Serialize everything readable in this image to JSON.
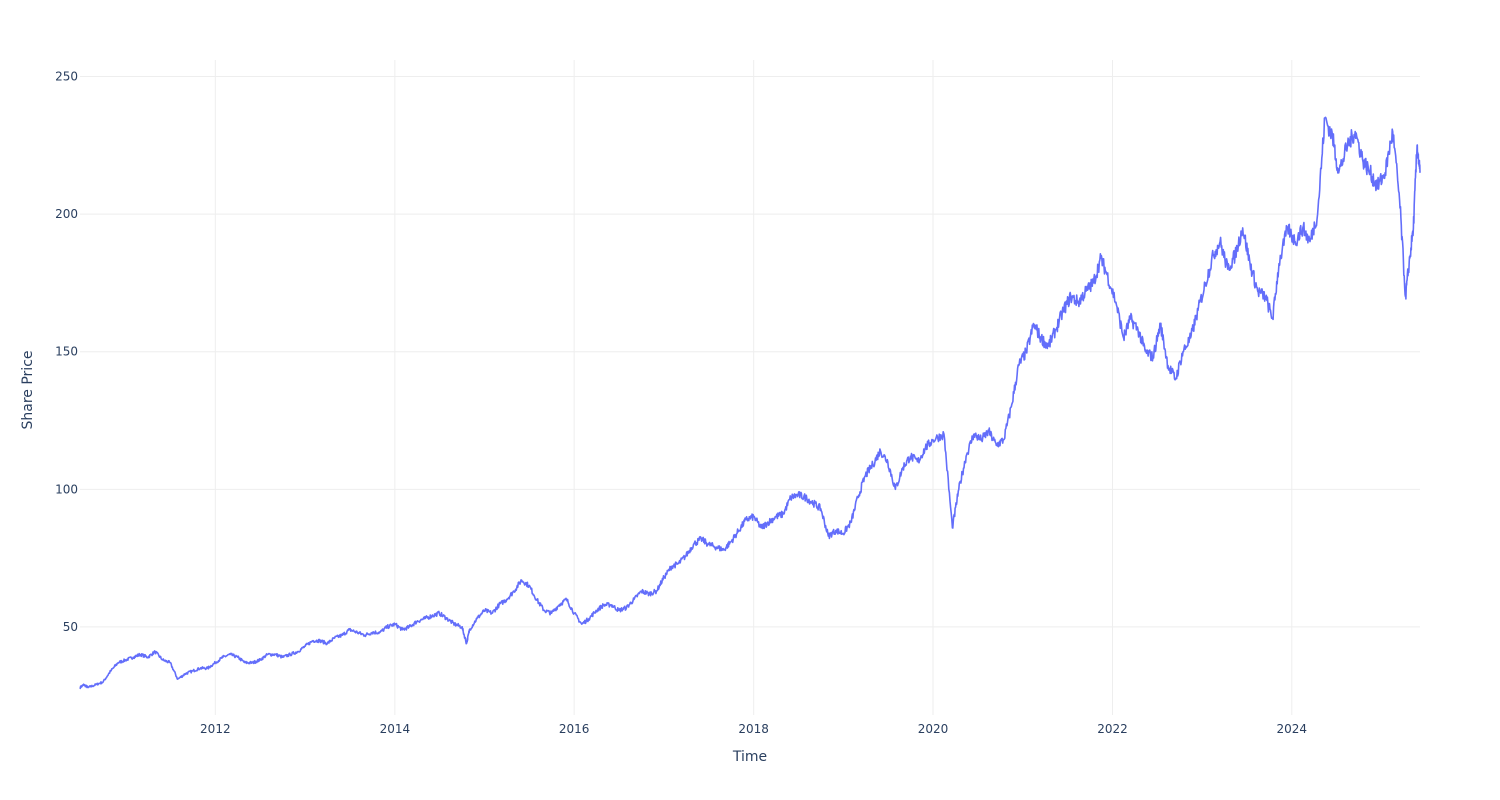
{
  "chart_data": {
    "type": "line",
    "title": "",
    "xlabel": "Time",
    "ylabel": "Share Price",
    "grid": true,
    "legend": "none",
    "colors": {
      "line": "#636efa",
      "grid": "#eeeeee",
      "text": "#2a3f5f"
    },
    "xlim": [
      "2010-06-29",
      "2025-06-06"
    ],
    "ylim": [
      18,
      256
    ],
    "x_ticks": [
      "2012",
      "2014",
      "2016",
      "2018",
      "2020",
      "2022",
      "2024"
    ],
    "y_ticks": [
      "50",
      "100",
      "150",
      "200",
      "250"
    ],
    "series": [
      {
        "x": [
          "2010-06-29",
          "2010-07-15",
          "2010-08-01",
          "2010-09-01",
          "2010-10-01",
          "2010-11-01",
          "2010-12-01",
          "2011-01-01",
          "2011-02-01",
          "2011-03-01",
          "2011-04-01",
          "2011-05-01",
          "2011-06-01",
          "2011-07-01",
          "2011-08-01",
          "2011-09-01",
          "2011-10-01",
          "2011-11-01",
          "2011-12-01",
          "2012-01-01",
          "2012-02-01",
          "2012-03-01",
          "2012-04-01",
          "2012-05-01",
          "2012-06-01",
          "2012-07-01",
          "2012-08-01",
          "2012-09-01",
          "2012-10-01",
          "2012-11-01",
          "2012-12-01",
          "2013-01-01",
          "2013-02-01",
          "2013-03-01",
          "2013-04-01",
          "2013-05-01",
          "2013-06-01",
          "2013-07-01",
          "2013-08-01",
          "2013-09-01",
          "2013-10-01",
          "2013-11-01",
          "2013-12-01",
          "2014-01-01",
          "2014-02-01",
          "2014-03-01",
          "2014-04-01",
          "2014-05-01",
          "2014-06-01",
          "2014-07-01",
          "2014-08-01",
          "2014-09-01",
          "2014-10-01",
          "2014-10-20",
          "2014-11-01",
          "2014-12-01",
          "2015-01-01",
          "2015-02-01",
          "2015-03-01",
          "2015-04-01",
          "2015-05-01",
          "2015-06-01",
          "2015-07-01",
          "2015-08-01",
          "2015-09-01",
          "2015-10-01",
          "2015-11-01",
          "2015-12-01",
          "2016-01-01",
          "2016-02-01",
          "2016-03-01",
          "2016-04-01",
          "2016-05-01",
          "2016-06-01",
          "2016-07-01",
          "2016-08-01",
          "2016-09-01",
          "2016-10-01",
          "2016-11-01",
          "2016-12-01",
          "2017-01-01",
          "2017-02-01",
          "2017-03-01",
          "2017-04-01",
          "2017-05-01",
          "2017-06-01",
          "2017-07-01",
          "2017-08-01",
          "2017-09-01",
          "2017-10-01",
          "2017-11-01",
          "2017-12-01",
          "2018-01-01",
          "2018-02-01",
          "2018-03-01",
          "2018-04-01",
          "2018-05-01",
          "2018-06-01",
          "2018-07-01",
          "2018-08-01",
          "2018-09-01",
          "2018-10-01",
          "2018-11-01",
          "2018-12-01",
          "2019-01-01",
          "2019-02-01",
          "2019-03-01",
          "2019-04-01",
          "2019-05-01",
          "2019-06-01",
          "2019-07-01",
          "2019-08-01",
          "2019-09-01",
          "2019-10-01",
          "2019-11-01",
          "2019-12-01",
          "2020-01-01",
          "2020-02-15",
          "2020-03-20",
          "2020-04-15",
          "2020-05-15",
          "2020-06-15",
          "2020-07-15",
          "2020-08-15",
          "2020-09-15",
          "2020-10-15",
          "2020-11-15",
          "2020-12-15",
          "2021-01-15",
          "2021-02-15",
          "2021-03-15",
          "2021-04-15",
          "2021-05-15",
          "2021-06-15",
          "2021-07-15",
          "2021-08-15",
          "2021-09-15",
          "2021-10-15",
          "2021-11-15",
          "2021-12-10",
          "2022-01-15",
          "2022-02-15",
          "2022-03-15",
          "2022-04-15",
          "2022-05-15",
          "2022-06-15",
          "2022-07-15",
          "2022-08-15",
          "2022-09-15",
          "2022-10-15",
          "2022-11-15",
          "2022-12-15",
          "2023-01-15",
          "2023-02-15",
          "2023-03-15",
          "2023-04-15",
          "2023-05-15",
          "2023-06-15",
          "2023-07-15",
          "2023-08-15",
          "2023-09-15",
          "2023-10-15",
          "2023-11-10",
          "2023-12-15",
          "2024-01-15",
          "2024-02-15",
          "2024-03-15",
          "2024-04-15",
          "2024-05-15",
          "2024-06-15",
          "2024-07-10",
          "2024-08-15",
          "2024-09-15",
          "2024-10-15",
          "2024-11-15",
          "2024-12-15",
          "2025-01-15",
          "2025-02-15",
          "2025-03-15",
          "2025-04-08",
          "2025-04-20",
          "2025-05-10",
          "2025-05-25",
          "2025-06-06"
        ],
        "y": [
          28,
          29,
          28,
          29,
          30,
          34,
          37,
          38,
          39,
          40,
          39,
          41,
          38,
          37,
          31,
          33,
          34,
          35,
          35,
          37,
          39,
          40,
          39,
          37,
          37,
          38,
          40,
          40,
          39,
          40,
          41,
          43,
          45,
          45,
          44,
          46,
          47,
          49,
          48,
          47,
          48,
          48,
          50,
          51,
          49,
          50,
          52,
          53,
          54,
          55,
          53,
          51,
          50,
          44,
          49,
          53,
          56,
          55,
          58,
          60,
          63,
          67,
          65,
          60,
          56,
          55,
          58,
          60,
          55,
          51,
          53,
          56,
          58,
          58,
          56,
          57,
          60,
          63,
          62,
          63,
          68,
          72,
          73,
          76,
          80,
          82,
          80,
          79,
          78,
          81,
          85,
          89,
          90,
          86,
          88,
          90,
          91,
          97,
          98,
          97,
          95,
          93,
          83,
          85,
          84,
          88,
          97,
          105,
          109,
          114,
          110,
          100,
          108,
          112,
          110,
          115,
          118,
          120,
          86,
          100,
          112,
          120,
          118,
          121,
          116,
          118,
          130,
          145,
          150,
          160,
          155,
          152,
          158,
          165,
          170,
          168,
          172,
          175,
          184,
          178,
          168,
          155,
          162,
          158,
          150,
          148,
          160,
          145,
          140,
          150,
          155,
          165,
          175,
          185,
          190,
          180,
          185,
          195,
          182,
          172,
          170,
          162,
          182,
          195,
          190,
          195,
          190,
          200,
          235,
          228,
          215,
          225,
          230,
          220,
          215,
          210,
          215,
          230,
          205,
          170,
          180,
          195,
          225,
          215
        ]
      }
    ]
  }
}
